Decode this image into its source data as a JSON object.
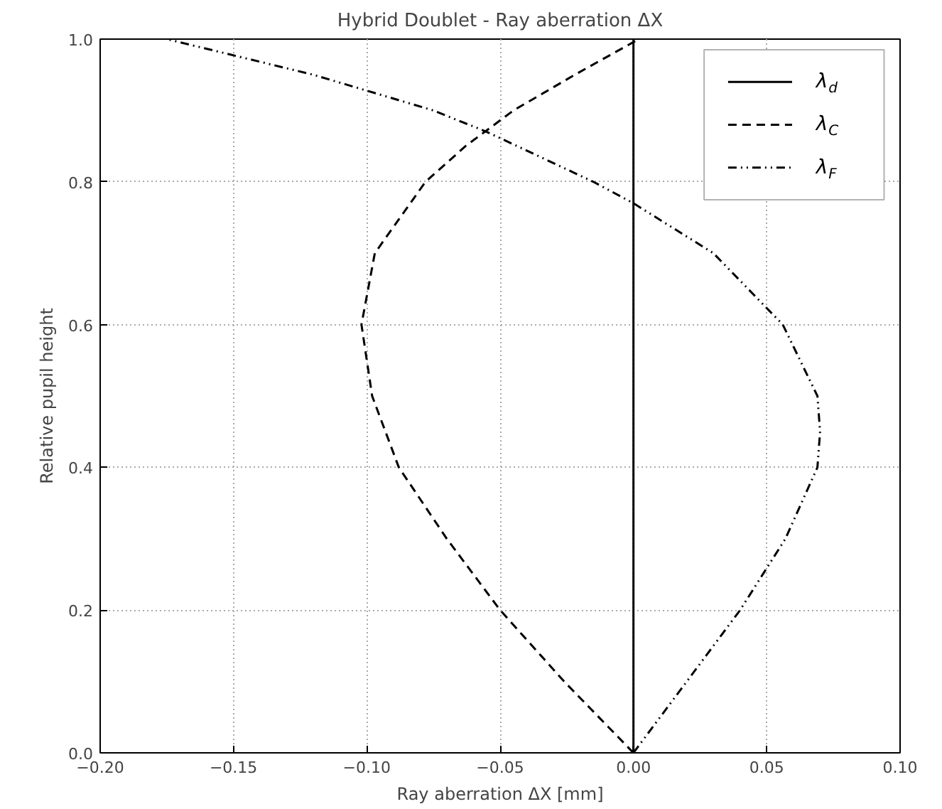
{
  "chart_data": {
    "type": "line",
    "title": "Hybrid Doublet - Ray aberration ΔX",
    "xlabel": "Ray aberration ΔX [mm]",
    "ylabel": "Relative pupil height",
    "xlim": [
      -0.2,
      0.1
    ],
    "ylim": [
      0,
      1
    ],
    "xticks": [
      {
        "value": -0.2,
        "label": "−0.20"
      },
      {
        "value": -0.15,
        "label": "−0.15"
      },
      {
        "value": -0.1,
        "label": "−0.10"
      },
      {
        "value": -0.05,
        "label": "−0.05"
      },
      {
        "value": 0,
        "label": "0.00"
      },
      {
        "value": 0.05,
        "label": "0.05"
      },
      {
        "value": 0.1,
        "label": "0.10"
      }
    ],
    "yticks": [
      {
        "value": 0,
        "label": "0.0"
      },
      {
        "value": 0.2,
        "label": "0.2"
      },
      {
        "value": 0.4,
        "label": "0.4"
      },
      {
        "value": 0.6,
        "label": "0.6"
      },
      {
        "value": 0.8,
        "label": "0.8"
      },
      {
        "value": 1,
        "label": "1.0"
      }
    ],
    "grid": true,
    "legend": "top right",
    "series": [
      {
        "name": "λ$_{d}$",
        "color": "#000000",
        "line_style": "solid",
        "x": [
          0,
          0
        ],
        "values": [
          0,
          1
        ]
      },
      {
        "name": "λ$_{C}$",
        "color": "#000000",
        "line_style": "dashed",
        "x": [
          0,
          -0.026,
          -0.05,
          -0.07,
          -0.088,
          -0.098,
          -0.102,
          -0.097,
          -0.078,
          -0.063,
          -0.045,
          -0.022,
          0.002
        ],
        "values": [
          0,
          0.1,
          0.2,
          0.3,
          0.4,
          0.5,
          0.6,
          0.7,
          0.8,
          0.85,
          0.9,
          0.95,
          1.0
        ]
      },
      {
        "name": "λ$_{F}$",
        "color": "#000000",
        "line_style": "dashdotdot",
        "x": [
          0,
          0.02,
          0.04,
          0.057,
          0.069,
          0.07,
          0.069,
          0.056,
          0.03,
          0.0,
          -0.015,
          -0.055,
          -0.075,
          -0.12,
          -0.175
        ],
        "values": [
          0,
          0.1,
          0.2,
          0.3,
          0.4,
          0.45,
          0.5,
          0.6,
          0.7,
          0.77,
          0.8,
          0.87,
          0.9,
          0.95,
          1.0
        ]
      }
    ]
  }
}
